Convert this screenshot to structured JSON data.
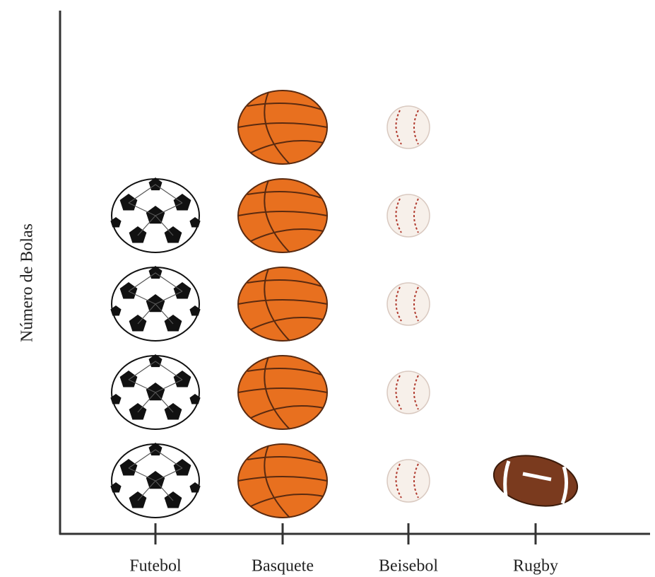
{
  "chart_data": {
    "type": "pictograph",
    "y_label": "Número de Bolas",
    "categories": [
      "Futebol",
      "Basquete",
      "Beisebol",
      "Rugby"
    ],
    "values": [
      4,
      5,
      5,
      1
    ]
  }
}
